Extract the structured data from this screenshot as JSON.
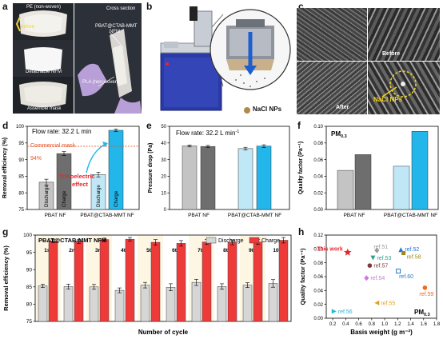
{
  "panels": {
    "a": {
      "label": "a",
      "photos": {
        "pe": "PE (non-woven)",
        "before": "before",
        "detachable": "Detachable NFM",
        "assemble": "Assemble mask",
        "cross": "Cross section",
        "pbat": "PBAT@CTAB-MMT",
        "nfm": "NFM",
        "pla": "PLA (non-woven)"
      }
    },
    "b": {
      "label": "b",
      "legend": "NaCl NPs"
    },
    "c": {
      "label": "c",
      "before": "Before",
      "after": "After",
      "nacl": "NaCl NPs"
    },
    "d": {
      "label": "d",
      "flow": "Flow rate: 32.2 L min",
      "flow_sup": "-1",
      "commercial": "Commercial mask",
      "pct": "94%",
      "tribo1": "Triboelectric",
      "tribo2": "effect"
    },
    "e": {
      "label": "e",
      "flow": "Flow rate: 32.2 L min",
      "flow_sup": "-1"
    },
    "f": {
      "label": "f",
      "pm": "PM",
      "pm_sub": "0.3"
    },
    "g": {
      "label": "g",
      "title": "PBAT@CTAB-MMT NFM"
    },
    "h": {
      "label": "h",
      "this_work": "This work",
      "pm": "PM",
      "pm_sub": "0.3"
    }
  },
  "chart_data": [
    {
      "id": "d",
      "type": "bar",
      "ylabel": "Removal efficiency (%)",
      "ylim": [
        75,
        100
      ],
      "yticks": [
        75,
        80,
        85,
        90,
        95,
        100
      ],
      "groups": [
        "PBAT NF",
        "PBAT@CTAB-MMT NF"
      ],
      "bar_labels": [
        "Discharge",
        "Charge",
        "Discharge",
        "Charge"
      ],
      "values": [
        83.2,
        91.8,
        85.5,
        98.8
      ],
      "errors": [
        0.9,
        0.6,
        0.7,
        0.4
      ],
      "colors": [
        "#c4c4c4",
        "#6e6e6e",
        "#bfe7f6",
        "#22b6ea"
      ],
      "reference_line": 94
    },
    {
      "id": "e",
      "type": "bar",
      "ylabel": "Pressure drop (Pa)",
      "ylim": [
        0,
        50
      ],
      "yticks": [
        0,
        10,
        20,
        30,
        40,
        50
      ],
      "groups": [
        "PBAT NF",
        "PBAT@CTAB-MMT NF"
      ],
      "values": [
        38.2,
        37.9,
        36.6,
        38.1
      ],
      "errors": [
        0.6,
        0.6,
        0.8,
        0.8
      ],
      "colors": [
        "#c4c4c4",
        "#6e6e6e",
        "#bfe7f6",
        "#22b6ea"
      ]
    },
    {
      "id": "f",
      "type": "bar",
      "ylabel": "Quality factor (Pa⁻¹)",
      "ylim": [
        0,
        0.1
      ],
      "yticks": [
        "0.00",
        "0.02",
        "0.04",
        "0.06",
        "0.08",
        "0.10"
      ],
      "groups": [
        "PBAT NF",
        "PBAT@CTAB-MMT NF"
      ],
      "values": [
        0.047,
        0.066,
        0.052,
        0.094
      ],
      "colors": [
        "#c4c4c4",
        "#6e6e6e",
        "#bfe7f6",
        "#22b6ea"
      ]
    },
    {
      "id": "g",
      "type": "bar",
      "xlabel": "Number of cycle",
      "ylabel": "Removal efficiency (%)",
      "ylim": [
        75,
        100
      ],
      "yticks": [
        75,
        80,
        85,
        90,
        95,
        100
      ],
      "categories": [
        "1st",
        "2nd",
        "3rd",
        "4th",
        "5th",
        "6th",
        "7th",
        "8th",
        "9th",
        "10th"
      ],
      "series": [
        {
          "name": "Discharge",
          "color": "#d6d6d6",
          "values": [
            85.3,
            85.1,
            85.0,
            84.0,
            85.5,
            84.9,
            86.3,
            85.1,
            85.5,
            86.0
          ],
          "errors": [
            0.5,
            0.7,
            0.7,
            0.7,
            0.8,
            1.0,
            0.9,
            0.8,
            0.7,
            1.1
          ]
        },
        {
          "name": "Charge",
          "color": "#ef3a3a",
          "values": [
            98.3,
            98.2,
            98.7,
            98.8,
            97.9,
            97.6,
            98.0,
            97.9,
            98.0,
            98.5
          ],
          "errors": [
            0.5,
            0.6,
            0.4,
            0.5,
            0.8,
            0.8,
            0.7,
            0.7,
            0.7,
            0.8
          ]
        }
      ]
    },
    {
      "id": "h",
      "type": "scatter",
      "xlabel": "Basis weight (g m⁻²)",
      "ylabel": "Quality factor (Pa⁻¹)",
      "xlim": [
        0.1,
        1.8
      ],
      "ylim": [
        0.0,
        0.12
      ],
      "xticks": [
        "0.2",
        "0.4",
        "0.6",
        "0.8",
        "1.0",
        "1.2",
        "1.4",
        "1.6",
        "1.8"
      ],
      "yticks": [
        "0.00",
        "0.02",
        "0.04",
        "0.06",
        "0.08",
        "0.10",
        "0.12"
      ],
      "points": [
        {
          "label": "This work",
          "x": 0.43,
          "y": 0.095,
          "color": "#e8262c",
          "shape": "star"
        },
        {
          "label": "ref.51",
          "x": 0.88,
          "y": 0.098,
          "color": "#9a9a9a",
          "shape": "diamond"
        },
        {
          "label": "ref.52",
          "x": 1.25,
          "y": 0.099,
          "color": "#1e73d8",
          "shape": "triangle-up"
        },
        {
          "label": "ref.58",
          "x": 1.29,
          "y": 0.094,
          "color": "#9a8a1a",
          "shape": "square"
        },
        {
          "label": "ref.53",
          "x": 0.82,
          "y": 0.087,
          "color": "#2ea38c",
          "shape": "triangle-down"
        },
        {
          "label": "ref.57",
          "x": 0.77,
          "y": 0.076,
          "color": "#7a3a3a",
          "shape": "circle"
        },
        {
          "label": "ref.60",
          "x": 1.21,
          "y": 0.068,
          "color": "#2a78c8",
          "shape": "square-open"
        },
        {
          "label": "ref.54",
          "x": 0.72,
          "y": 0.058,
          "color": "#c879d8",
          "shape": "diamond"
        },
        {
          "label": "ref.59",
          "x": 1.62,
          "y": 0.044,
          "color": "#f06a1a",
          "shape": "circle"
        },
        {
          "label": "ref.55",
          "x": 0.88,
          "y": 0.022,
          "color": "#e2a020",
          "shape": "triangle-left"
        },
        {
          "label": "ref.56",
          "x": 0.22,
          "y": 0.01,
          "color": "#22b8d8",
          "shape": "triangle-right"
        }
      ]
    }
  ]
}
